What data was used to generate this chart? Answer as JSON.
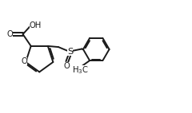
{
  "bg_color": "#ffffff",
  "line_color": "#1a1a1a",
  "line_width": 1.4,
  "font_size": 7.2,
  "xlim": [
    0,
    10
  ],
  "ylim": [
    0,
    5.92
  ]
}
